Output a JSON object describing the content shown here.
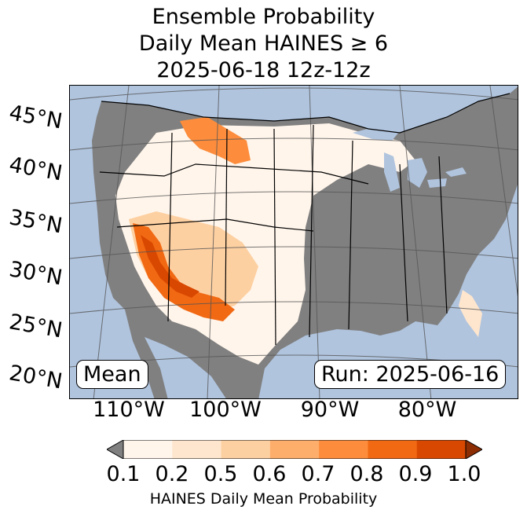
{
  "title": {
    "line1": "Ensemble Probability",
    "line2": "Daily Mean HAINES ≥ 6",
    "line3": "2025-06-18 12z-12z"
  },
  "map": {
    "lat_labels": [
      "45°N",
      "40°N",
      "35°N",
      "30°N",
      "25°N",
      "20°N"
    ],
    "lon_labels": [
      "110°W",
      "100°W",
      "90°W",
      "80°W"
    ],
    "stat_box": "Mean",
    "run_box": "Run: 2025-06-16",
    "colors": {
      "ocean": "#b0c4de",
      "masked_land": "#808080",
      "lakes": "#b0c4de"
    }
  },
  "colorbar": {
    "ticks": [
      "0.1",
      "0.2",
      "0.5",
      "0.6",
      "0.7",
      "0.8",
      "0.9",
      "1.0"
    ],
    "under_color": "#808080",
    "bin_colors": [
      "#fff5eb",
      "#fee6ce",
      "#fdd0a2",
      "#fdae6b",
      "#fd8d3c",
      "#f16913",
      "#d94801"
    ],
    "over_color": "#8c2d04",
    "label": "HAINES Daily Mean Probability"
  }
}
